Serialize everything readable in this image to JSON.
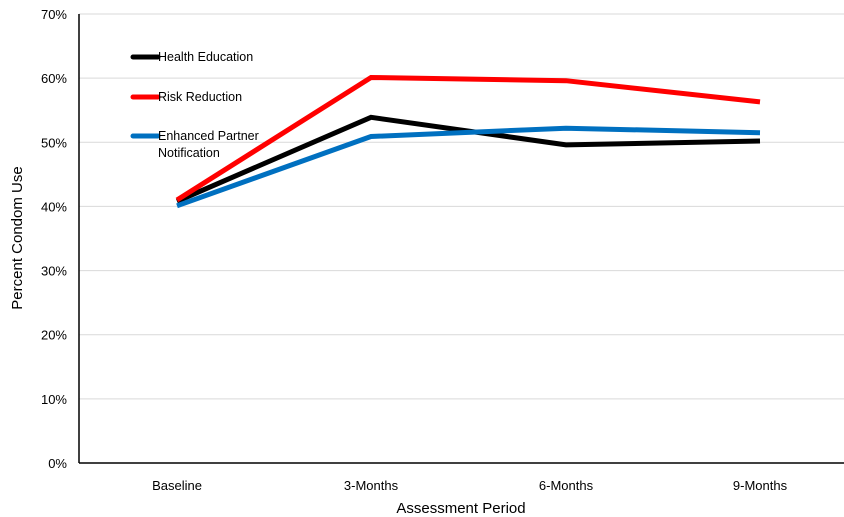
{
  "chart_data": {
    "type": "line",
    "title": "",
    "xlabel": "Assessment Period",
    "ylabel": "Percent Condom Use",
    "categories": [
      "Baseline",
      "3-Months",
      "6-Months",
      "9-Months"
    ],
    "ylim": [
      0,
      70
    ],
    "yticks": [
      "0%",
      "10%",
      "20%",
      "30%",
      "40%",
      "50%",
      "60%",
      "70%"
    ],
    "grid": true,
    "legend_position": "top-left",
    "series": [
      {
        "name": "Health Education",
        "color": "#000000",
        "values": [
          40.8,
          53.9,
          49.6,
          50.2
        ]
      },
      {
        "name": "Risk Reduction",
        "color": "#ff0000",
        "values": [
          41.0,
          60.1,
          59.6,
          56.3
        ]
      },
      {
        "name": "Enhanced Partner Notification",
        "label_lines": [
          "Enhanced Partner",
          "Notification"
        ],
        "color": "#0070c0",
        "values": [
          40.1,
          50.9,
          52.2,
          51.5
        ]
      }
    ]
  }
}
